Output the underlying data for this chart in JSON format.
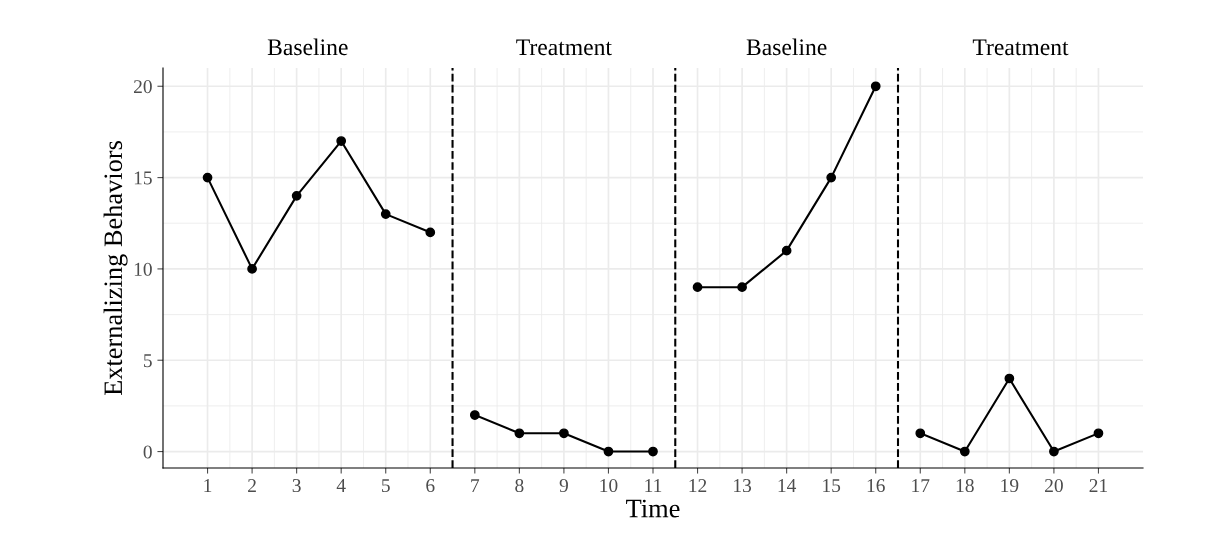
{
  "chart_data": {
    "type": "line",
    "xlabel": "Time",
    "ylabel": "Externalizing Behaviors",
    "series": [
      {
        "x": [
          1,
          2,
          3,
          4,
          5,
          6
        ],
        "values": [
          15,
          10,
          14,
          17,
          13,
          12
        ],
        "color": "#000000"
      },
      {
        "x": [
          7,
          8,
          9,
          10,
          11
        ],
        "values": [
          2,
          1,
          1,
          0,
          0
        ],
        "color": "#000000"
      },
      {
        "x": [
          12,
          13,
          14,
          15,
          16
        ],
        "values": [
          9,
          9,
          11,
          15,
          20
        ],
        "color": "#000000"
      },
      {
        "x": [
          17,
          18,
          19,
          20,
          21
        ],
        "values": [
          1,
          0,
          4,
          0,
          1
        ],
        "color": "#000000"
      }
    ],
    "xlim": [
      0,
      22
    ],
    "xticks": [
      1,
      2,
      3,
      4,
      5,
      6,
      7,
      8,
      9,
      10,
      11,
      12,
      13,
      14,
      15,
      16,
      17,
      18,
      19,
      20,
      21
    ],
    "ylim": [
      -0.9,
      21
    ],
    "yticks": [
      0,
      5,
      10,
      15,
      20
    ],
    "ref_lines": [
      {
        "axis": "x",
        "value": 6.5,
        "line_style": "dashed",
        "color": "#000000"
      },
      {
        "axis": "x",
        "value": 11.5,
        "line_style": "dashed",
        "color": "#000000"
      },
      {
        "axis": "x",
        "value": 16.5,
        "line_style": "dashed",
        "color": "#000000"
      }
    ],
    "annotations": [
      "Baseline",
      "Treatment",
      "Baseline",
      "Treatment"
    ],
    "grid": true,
    "legend": false,
    "marker": "circle",
    "line_style": "solid"
  }
}
